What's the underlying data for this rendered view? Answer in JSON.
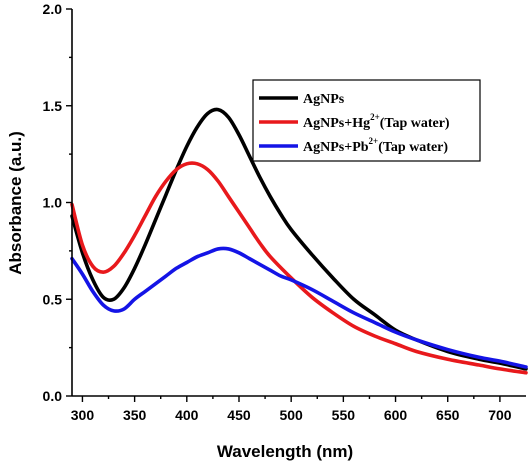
{
  "chart_data": {
    "type": "line",
    "title": "",
    "xlabel": "Wavelength (nm)",
    "ylabel": "Absorbance (a.u.)",
    "xlim": [
      290,
      725
    ],
    "ylim": [
      0.0,
      2.0
    ],
    "x_ticks": [
      "300",
      "350",
      "400",
      "450",
      "500",
      "550",
      "600",
      "650",
      "700"
    ],
    "x_tick_values": [
      300,
      350,
      400,
      450,
      500,
      550,
      600,
      650,
      700
    ],
    "y_ticks": [
      "0.0",
      "0.5",
      "1.0",
      "1.5",
      "2.0"
    ],
    "y_tick_values": [
      0.0,
      0.5,
      1.0,
      1.5,
      2.0
    ],
    "grid": false,
    "legend_position": "top-right",
    "series": [
      {
        "name": "AgNPs",
        "color": "#000000",
        "x": [
          290,
          300,
          310,
          320,
          330,
          340,
          350,
          360,
          370,
          380,
          390,
          400,
          410,
          420,
          430,
          440,
          450,
          460,
          470,
          480,
          490,
          500,
          520,
          540,
          560,
          580,
          600,
          620,
          650,
          680,
          700,
          725
        ],
        "y": [
          0.93,
          0.74,
          0.6,
          0.51,
          0.5,
          0.56,
          0.66,
          0.78,
          0.91,
          1.04,
          1.17,
          1.29,
          1.39,
          1.46,
          1.48,
          1.44,
          1.35,
          1.24,
          1.13,
          1.03,
          0.94,
          0.86,
          0.73,
          0.61,
          0.5,
          0.42,
          0.34,
          0.29,
          0.23,
          0.19,
          0.17,
          0.14
        ]
      },
      {
        "name": "AgNPs+Hg",
        "label_sup": "2+",
        "label_suffix": "(Tap water)",
        "color": "#e8191c",
        "x": [
          290,
          300,
          310,
          320,
          330,
          340,
          350,
          360,
          370,
          380,
          390,
          400,
          410,
          420,
          430,
          440,
          450,
          460,
          470,
          480,
          500,
          520,
          540,
          560,
          580,
          600,
          620,
          650,
          680,
          700,
          725
        ],
        "y": [
          0.99,
          0.78,
          0.67,
          0.64,
          0.67,
          0.74,
          0.83,
          0.93,
          1.03,
          1.11,
          1.17,
          1.2,
          1.2,
          1.17,
          1.11,
          1.03,
          0.95,
          0.87,
          0.79,
          0.72,
          0.61,
          0.51,
          0.43,
          0.36,
          0.31,
          0.27,
          0.23,
          0.19,
          0.16,
          0.14,
          0.12
        ]
      },
      {
        "name": "AgNPs+Pb",
        "label_sup": "2+",
        "label_suffix": "(Tap water)",
        "color": "#1414e6",
        "x": [
          290,
          300,
          310,
          320,
          330,
          340,
          350,
          360,
          370,
          380,
          390,
          400,
          410,
          420,
          430,
          440,
          450,
          460,
          470,
          480,
          490,
          500,
          520,
          540,
          560,
          580,
          600,
          620,
          650,
          680,
          700,
          725
        ],
        "y": [
          0.71,
          0.63,
          0.54,
          0.47,
          0.44,
          0.45,
          0.5,
          0.54,
          0.58,
          0.62,
          0.66,
          0.69,
          0.72,
          0.74,
          0.76,
          0.76,
          0.74,
          0.71,
          0.68,
          0.65,
          0.62,
          0.6,
          0.55,
          0.49,
          0.43,
          0.38,
          0.33,
          0.29,
          0.24,
          0.2,
          0.18,
          0.15
        ]
      }
    ]
  }
}
